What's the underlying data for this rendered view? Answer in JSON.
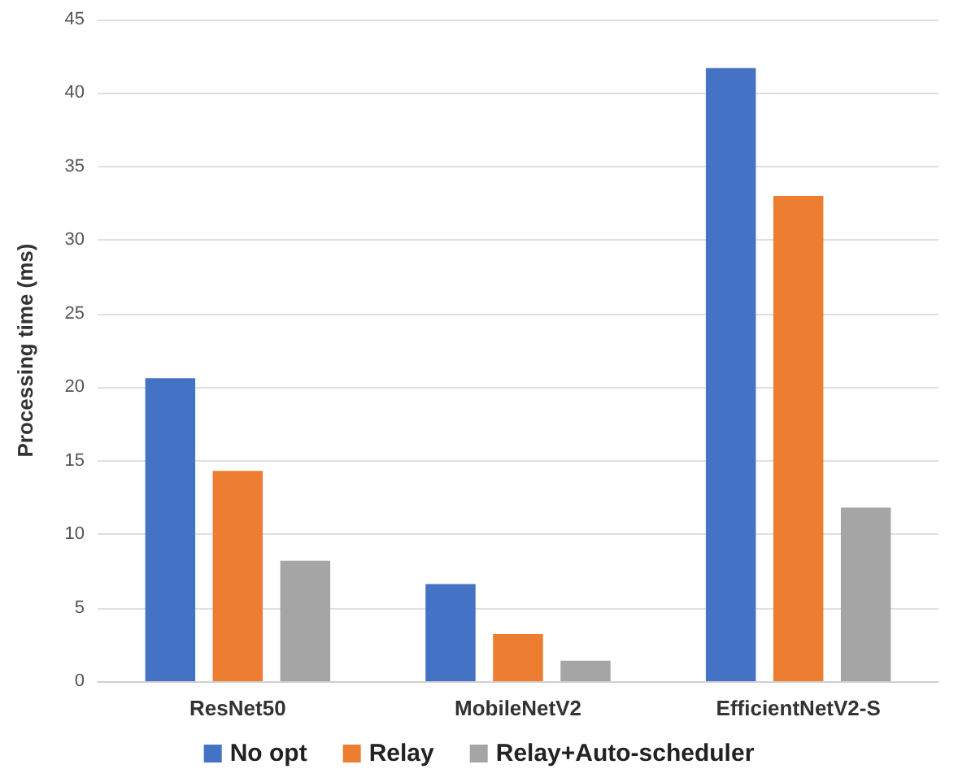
{
  "chart_data": {
    "type": "bar",
    "ylabel": "Processing time (ms)",
    "categories": [
      "ResNet50",
      "MobileNetV2",
      "EfficientNetV2-S"
    ],
    "series": [
      {
        "name": "No opt",
        "color": "#4472c4",
        "values": [
          20.6,
          6.6,
          41.7
        ]
      },
      {
        "name": "Relay",
        "color": "#ed7d31",
        "values": [
          14.3,
          3.2,
          33.0
        ]
      },
      {
        "name": "Relay+Auto-scheduler",
        "color": "#a5a5a5",
        "values": [
          8.2,
          1.4,
          11.8
        ]
      }
    ],
    "ylim": [
      0,
      45
    ],
    "yticks": [
      0,
      5,
      10,
      15,
      20,
      25,
      30,
      35,
      40,
      45
    ],
    "grid": "y",
    "legend": "bottom"
  }
}
